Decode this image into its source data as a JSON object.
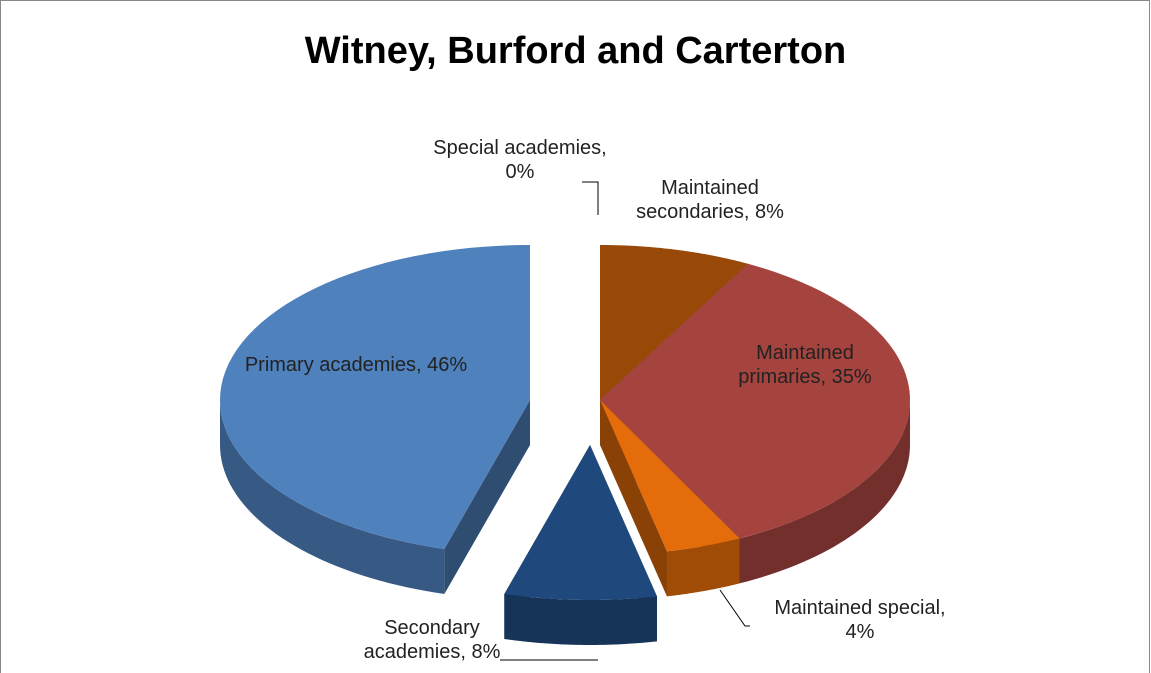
{
  "chart_data": {
    "type": "pie",
    "title": "Witney, Burford and Carterton",
    "categories": [
      "Maintained secondaries",
      "Maintained primaries",
      "Maintained special",
      "Secondary academies",
      "Primary academies",
      "Special academies"
    ],
    "values": [
      8,
      35,
      4,
      8,
      46,
      0
    ],
    "value_labels": [
      "8%",
      "35%",
      "4%",
      "8%",
      "46%",
      "0%"
    ],
    "colors": [
      "#984807",
      "#a5433f",
      "#e46c0a",
      "#1f497d",
      "#4f81bd",
      "#7f7f7f"
    ]
  }
}
